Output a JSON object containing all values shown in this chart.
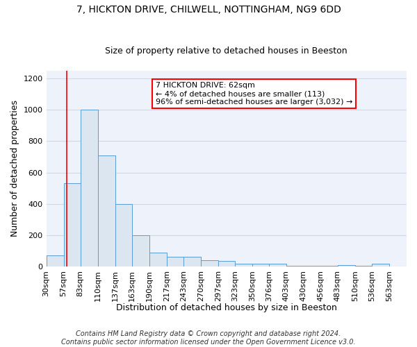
{
  "title_line1": "7, HICKTON DRIVE, CHILWELL, NOTTINGHAM, NG9 6DD",
  "title_line2": "Size of property relative to detached houses in Beeston",
  "xlabel": "Distribution of detached houses by size in Beeston",
  "ylabel": "Number of detached properties",
  "footnote": "Contains HM Land Registry data © Crown copyright and database right 2024.\nContains public sector information licensed under the Open Government Licence v3.0.",
  "bin_edges": [
    30,
    57,
    83,
    110,
    137,
    163,
    190,
    217,
    243,
    270,
    297,
    323,
    350,
    376,
    403,
    430,
    456,
    483,
    510,
    536,
    563,
    590
  ],
  "bar_heights": [
    70,
    530,
    1000,
    710,
    400,
    200,
    90,
    65,
    65,
    40,
    35,
    20,
    20,
    20,
    5,
    5,
    5,
    10,
    5,
    20,
    0
  ],
  "bar_facecolor": "#dce6f1",
  "bar_edgecolor": "#5b9bd5",
  "grid_color": "#d0d8e8",
  "background_color": "#eef2fa",
  "annotation_box_text": "7 HICKTON DRIVE: 62sqm\n← 4% of detached houses are smaller (113)\n96% of semi-detached houses are larger (3,032) →",
  "annotation_box_facecolor": "white",
  "annotation_box_edgecolor": "red",
  "red_line_x": 62,
  "red_line_color": "red",
  "ylim": [
    0,
    1250
  ],
  "yticks": [
    0,
    200,
    400,
    600,
    800,
    1000,
    1200
  ],
  "tick_label_fontsize": 8,
  "axis_label_fontsize": 9,
  "title1_fontsize": 10,
  "title2_fontsize": 9,
  "xlabel_fontsize": 9,
  "footnote_fontsize": 7,
  "annotation_fontsize": 8
}
